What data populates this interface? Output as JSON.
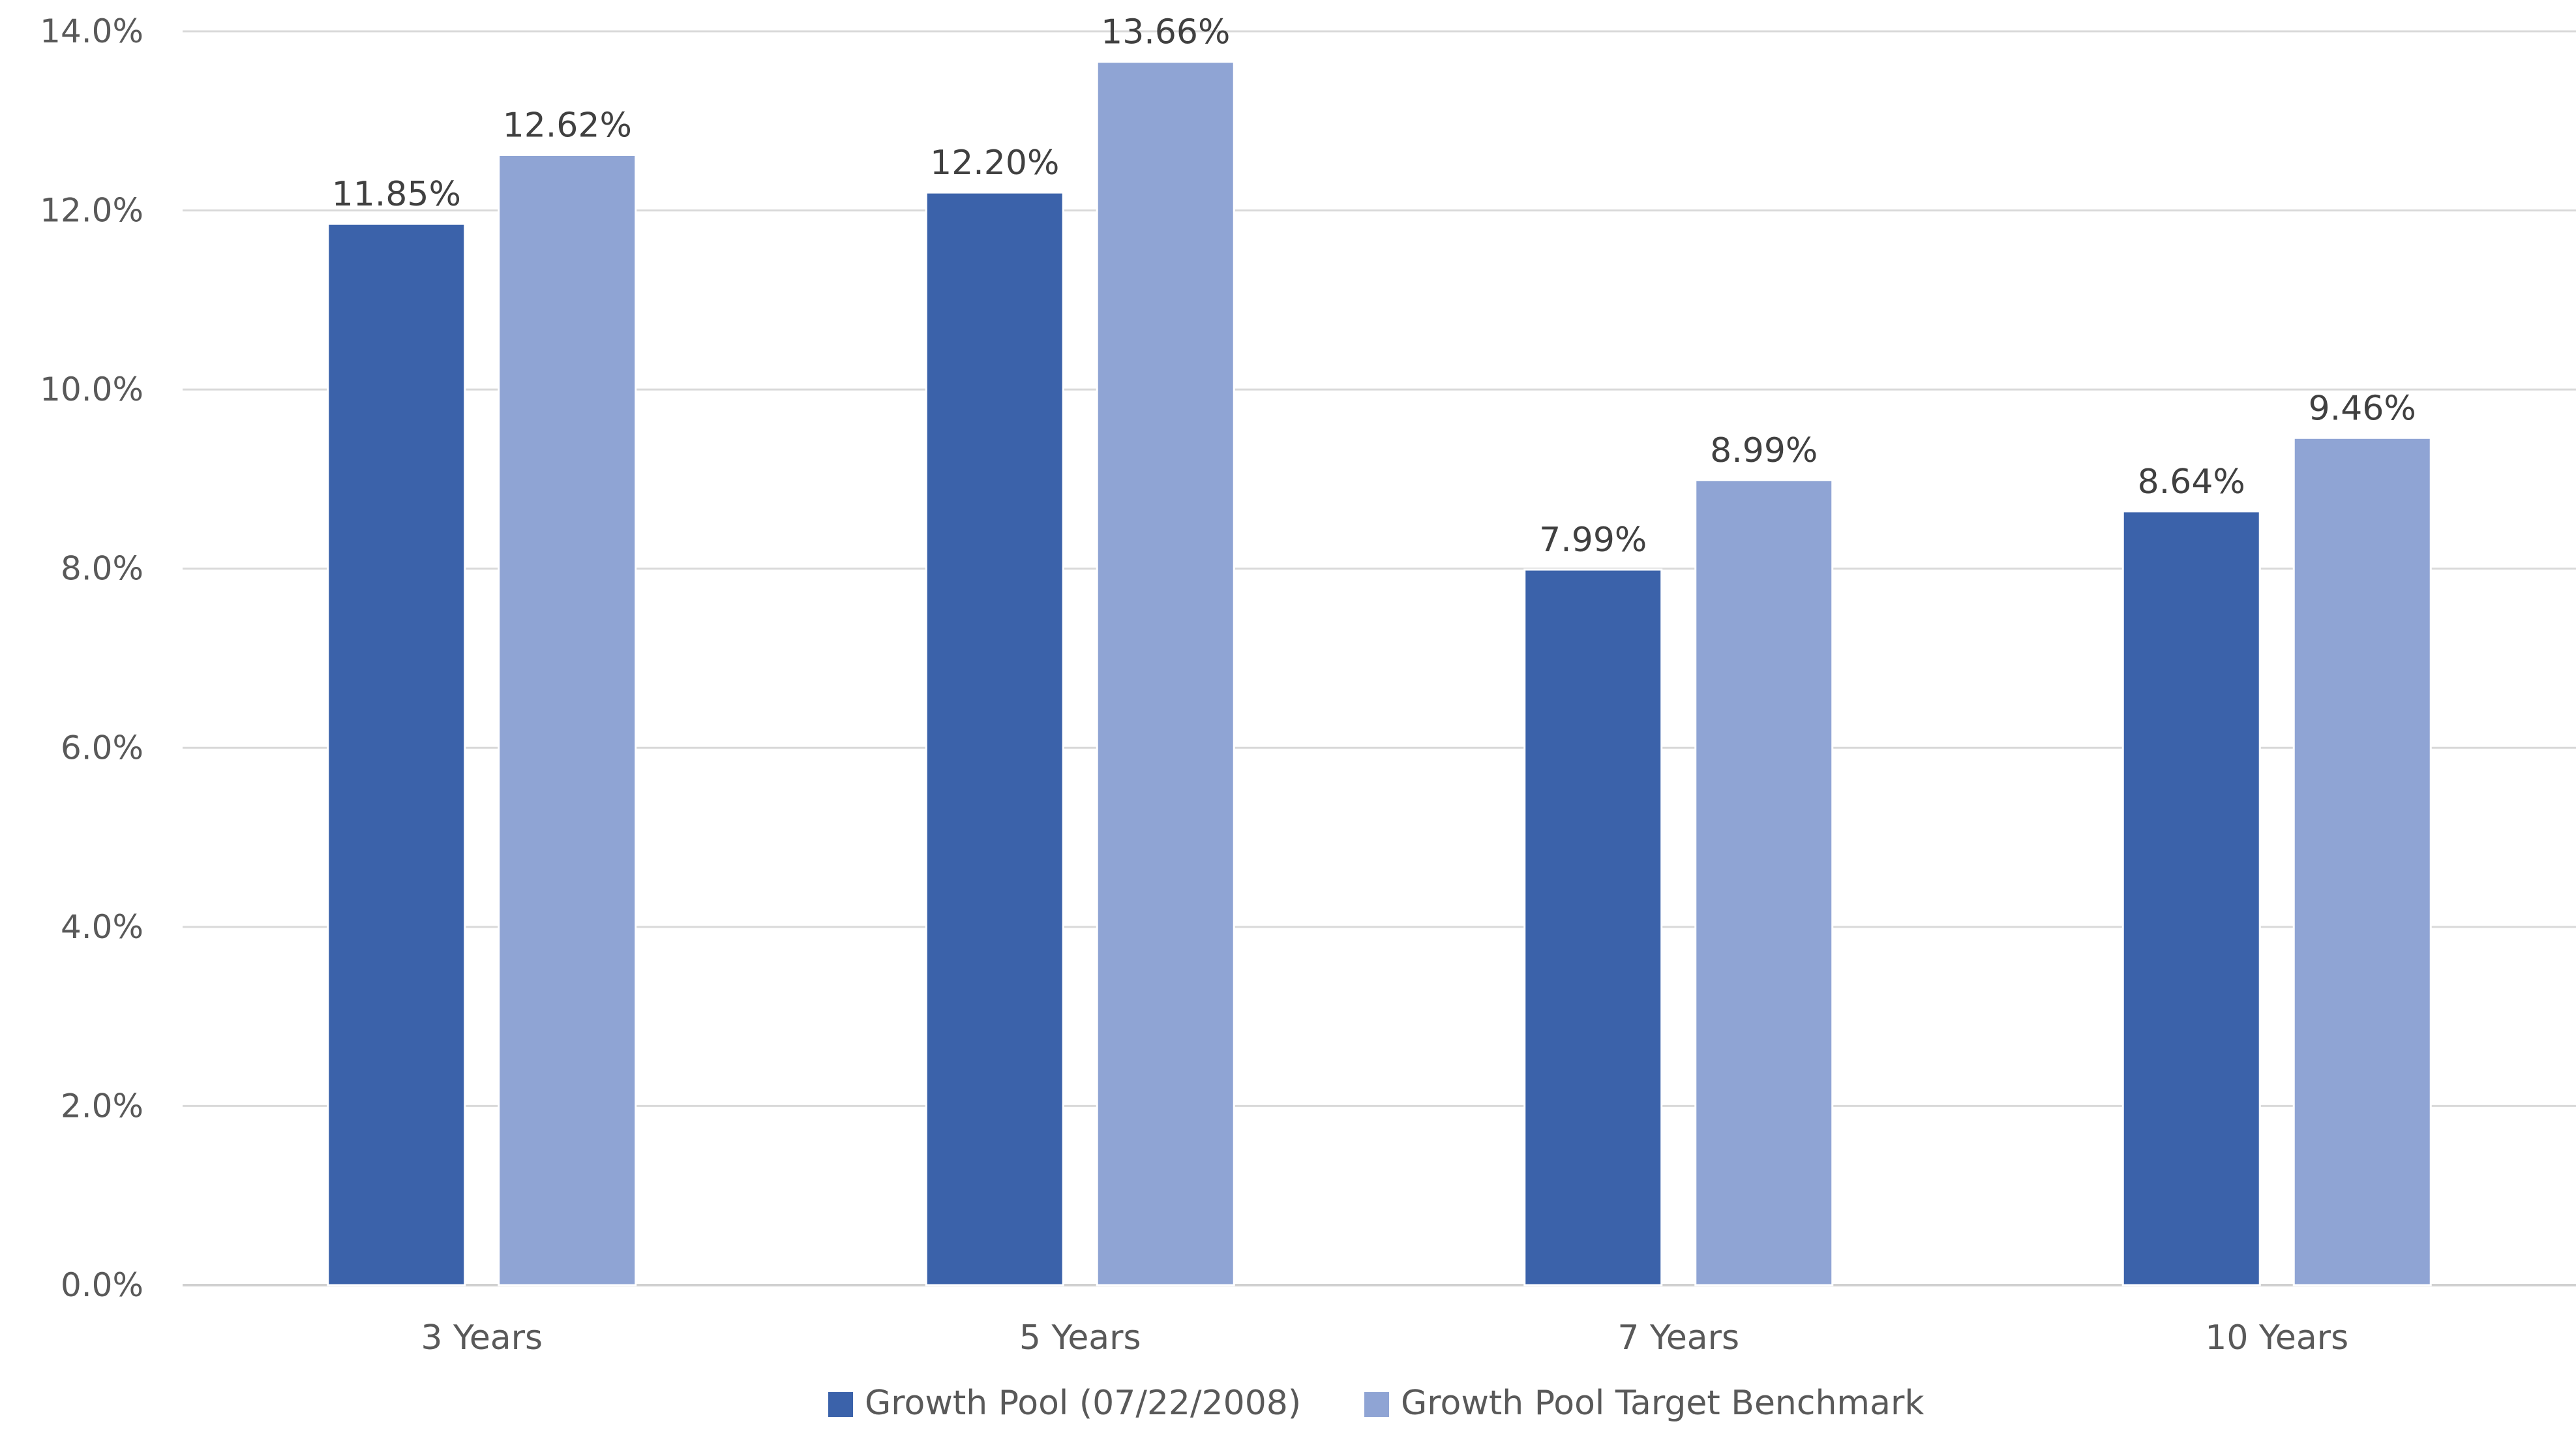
{
  "chart_data": {
    "type": "bar",
    "title": "",
    "xlabel": "",
    "ylabel": "",
    "categories": [
      "3 Years",
      "5 Years",
      "7 Years",
      "10 Years"
    ],
    "series": [
      {
        "name": "Growth Pool (07/22/2008)",
        "color": "#3b62aa",
        "values": [
          11.85,
          12.2,
          7.99,
          8.64
        ],
        "labels": [
          "11.85%",
          "12.20%",
          "7.99%",
          "8.64%"
        ]
      },
      {
        "name": "Growth Pool Target Benchmark",
        "color": "#8fa4d4",
        "values": [
          12.62,
          13.66,
          8.99,
          9.46
        ],
        "labels": [
          "12.62%",
          "13.66%",
          "8.99%",
          "9.46%"
        ]
      }
    ],
    "ylim": [
      0,
      14
    ],
    "yticks": [
      0,
      2,
      4,
      6,
      8,
      10,
      12,
      14
    ],
    "ytick_labels": [
      "0.0%",
      "2.0%",
      "4.0%",
      "6.0%",
      "8.0%",
      "10.0%",
      "12.0%",
      "14.0%"
    ],
    "grid": true,
    "legend_position": "bottom"
  }
}
